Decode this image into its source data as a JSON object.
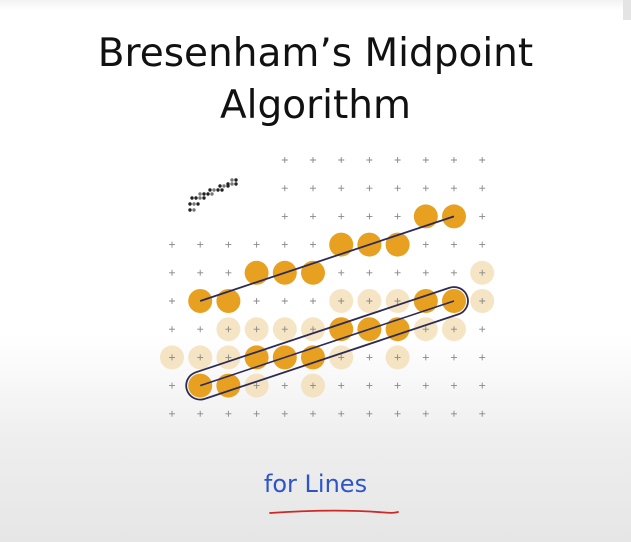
{
  "title": {
    "line1": "Bresenham’s Midpoint",
    "line2": "Algorithm"
  },
  "subtitle": "for Lines",
  "colors": {
    "background": "#ffffff",
    "title_text": "#111111",
    "subtitle_text": "#2e55c8",
    "pixel_fill": "#e8a020",
    "faded_pixel_fill": "#f3dcb0",
    "grid_plus": "#888888",
    "line": "#2b2b55",
    "underline": "#cc2a2a"
  },
  "grid": {
    "columns": 12,
    "rows": 10
  },
  "upper_line_pixels": [
    [
      1,
      5
    ],
    [
      2,
      5
    ],
    [
      3,
      4
    ],
    [
      4,
      4
    ],
    [
      5,
      4
    ],
    [
      6,
      3
    ],
    [
      7,
      3
    ],
    [
      8,
      3
    ],
    [
      9,
      2
    ],
    [
      10,
      2
    ]
  ],
  "lower_line_pixels": [
    [
      1,
      8
    ],
    [
      2,
      8
    ],
    [
      3,
      7
    ],
    [
      4,
      7
    ],
    [
      5,
      7
    ],
    [
      6,
      6
    ],
    [
      7,
      6
    ],
    [
      8,
      6
    ],
    [
      9,
      5
    ],
    [
      10,
      5
    ]
  ],
  "faded_pixels": [
    [
      0,
      7
    ],
    [
      1,
      7
    ],
    [
      2,
      7
    ],
    [
      3,
      8
    ],
    [
      4,
      6
    ],
    [
      5,
      6
    ],
    [
      6,
      7
    ],
    [
      7,
      5
    ],
    [
      8,
      5
    ],
    [
      9,
      6
    ],
    [
      10,
      6
    ],
    [
      11,
      5
    ],
    [
      2,
      6
    ],
    [
      3,
      6
    ],
    [
      5,
      8
    ],
    [
      6,
      5
    ],
    [
      8,
      7
    ],
    [
      11,
      4
    ]
  ],
  "icons": {
    "dot_pattern": "dot-matrix-icon"
  }
}
